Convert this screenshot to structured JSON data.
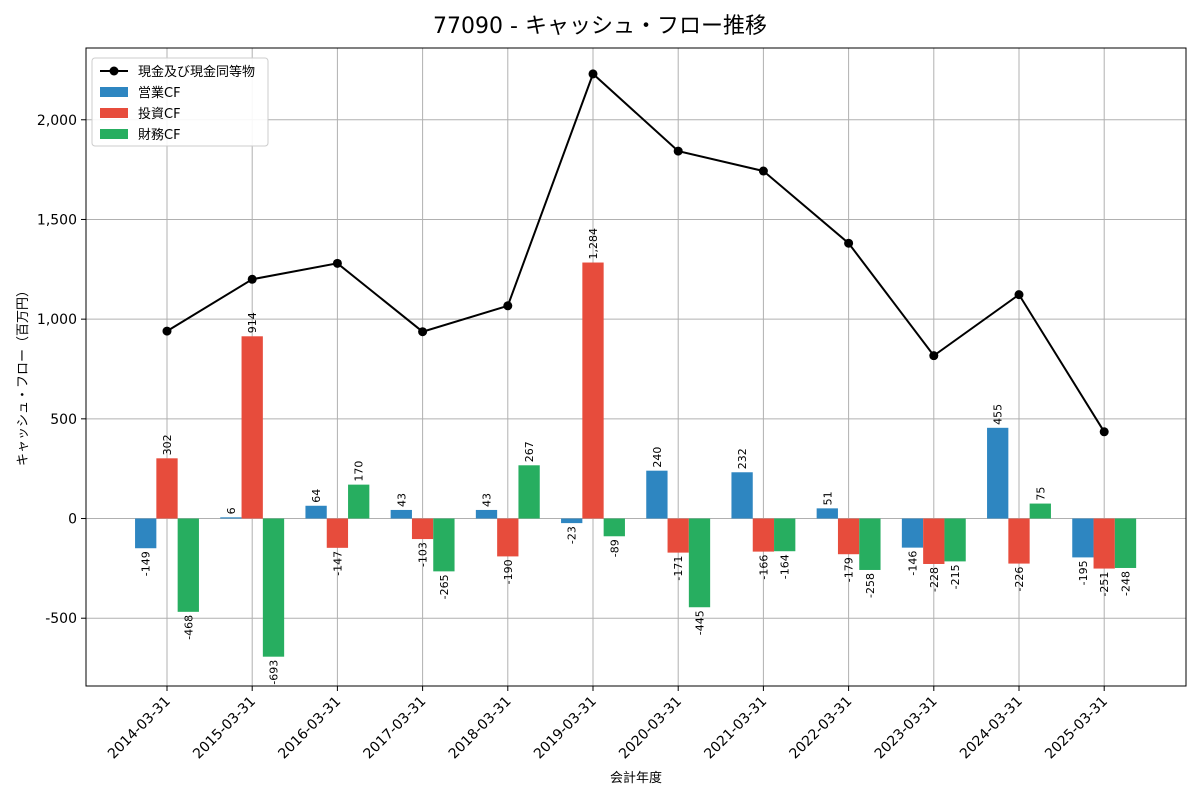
{
  "chart_data": {
    "type": "bar",
    "title": "77090 - キャッシュ・フロー推移",
    "xlabel": "会計年度",
    "ylabel": "キャッシュ・フロー（百万円）",
    "ylim": [
      -840,
      2360
    ],
    "yticks": [
      -500,
      0,
      500,
      1000,
      1500,
      2000
    ],
    "ytick_labels": [
      "-500",
      "0",
      "500",
      "1,000",
      "1,500",
      "2,000"
    ],
    "grid": true,
    "legend_position": "top-left",
    "categories": [
      "2014-03-31",
      "2015-03-31",
      "2016-03-31",
      "2017-03-31",
      "2018-03-31",
      "2019-03-31",
      "2020-03-31",
      "2021-03-31",
      "2022-03-31",
      "2023-03-31",
      "2024-03-31",
      "2025-03-31"
    ],
    "series": [
      {
        "name": "営業CF",
        "type": "bar",
        "color": "#2e86c1",
        "values": [
          -149,
          6,
          64,
          43,
          43,
          -23,
          240,
          232,
          51,
          -146,
          455,
          -195
        ],
        "labels": [
          "-149",
          "6",
          "64",
          "43",
          "43",
          "-23",
          "240",
          "232",
          "51",
          "-146",
          "455",
          "-195"
        ]
      },
      {
        "name": "投資CF",
        "type": "bar",
        "color": "#e74c3c",
        "values": [
          302,
          914,
          -147,
          -103,
          -190,
          1284,
          -171,
          -166,
          -179,
          -228,
          -226,
          -251
        ],
        "labels": [
          "302",
          "914",
          "-147",
          "-103",
          "-190",
          "1,284",
          "-171",
          "-166",
          "-179",
          "-228",
          "-226",
          "-251"
        ]
      },
      {
        "name": "財務CF",
        "type": "bar",
        "color": "#27ae60",
        "values": [
          -468,
          -693,
          170,
          -265,
          267,
          -89,
          -445,
          -164,
          -258,
          -215,
          75,
          -248
        ],
        "labels": [
          "-468",
          "-693",
          "170",
          "-265",
          "267",
          "-89",
          "-445",
          "-164",
          "-258",
          "-215",
          "75",
          "-248"
        ]
      },
      {
        "name": "現金及び現金同等物",
        "type": "line",
        "color": "#000000",
        "values": [
          940,
          1200,
          1280,
          937,
          1067,
          2230,
          1843,
          1743,
          1381,
          817,
          1123,
          435
        ]
      }
    ]
  }
}
